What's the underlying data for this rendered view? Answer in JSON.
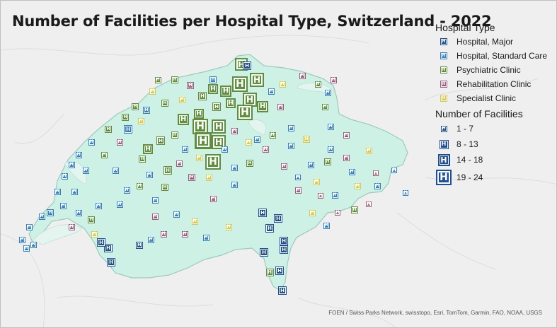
{
  "map": {
    "title": "Number of Facilities per Hospital Type, Switzerland - 2022",
    "attribution": "FOEN / Swiss Parks Network, swisstopo, Esri, TomTom, Garmin, FAO, NOAA, USGS",
    "colors": {
      "background": "#efefef",
      "land_fill": "#cdf1e5",
      "land_stroke": "#9ccabb",
      "hospital_major": "#1c4e9e",
      "hospital_standard": "#2f7fd0",
      "psychiatric": "#5e8f3b",
      "rehabilitation": "#a05a7c",
      "specialist": "#d8c948"
    }
  },
  "legend": {
    "type_heading": "Hospital Type",
    "types": [
      {
        "label": "Hospital, Major",
        "color": "#1c4e9e",
        "icon": "hospital-h-icon"
      },
      {
        "label": "Hospital, Standard Care",
        "color": "#2f7fd0",
        "icon": "hospital-h-icon"
      },
      {
        "label": "Psychiatric Clinic",
        "color": "#5e8f3b",
        "icon": "hospital-h-icon"
      },
      {
        "label": "Rehabilitation Clinic",
        "color": "#a05a7c",
        "icon": "hospital-h-icon"
      },
      {
        "label": "Specialist Clinic",
        "color": "#d8c948",
        "icon": "hospital-h-icon"
      }
    ],
    "count_heading": "Number of Facilities",
    "counts": [
      {
        "label": "1 - 7"
      },
      {
        "label": "8 - 13"
      },
      {
        "label": "14 - 18"
      },
      {
        "label": "19 - 24"
      }
    ]
  }
}
